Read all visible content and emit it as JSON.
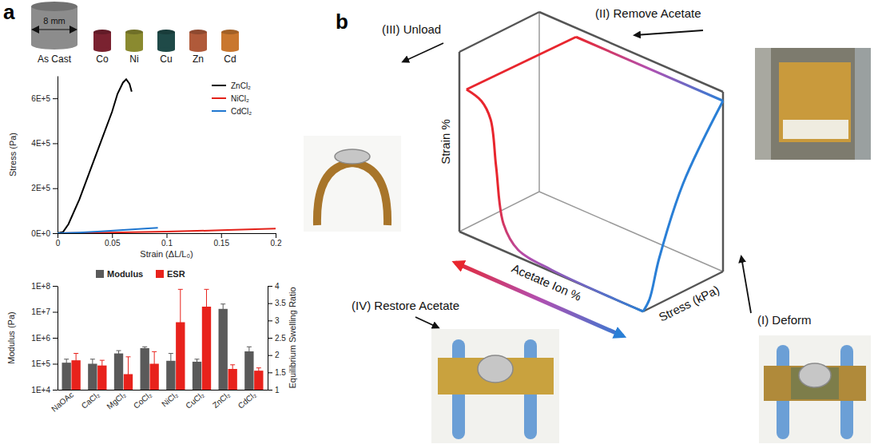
{
  "panel_a": {
    "label": "a",
    "samples": {
      "size_label": "8 mm",
      "names": [
        "As Cast",
        "Co",
        "Ni",
        "Cu",
        "Zn",
        "Cd"
      ],
      "colors": [
        "#8c8c8c",
        "#7a2230",
        "#8a8a30",
        "#1f4a48",
        "#b05a3a",
        "#c9772e"
      ]
    }
  },
  "chart_data": [
    {
      "type": "line",
      "x_label": "Strain (ΔL/L₀)",
      "y_label": "Stress (Pa)",
      "xlim": [
        0,
        0.2
      ],
      "ylim": [
        0,
        700000
      ],
      "xticks": [
        0,
        0.05,
        0.1,
        0.15,
        0.2
      ],
      "yticks": [
        {
          "value": 0,
          "label": "0E+0"
        },
        {
          "value": 200000,
          "label": "2E+5"
        },
        {
          "value": 400000,
          "label": "4E+5"
        },
        {
          "value": 600000,
          "label": "6E+5"
        }
      ],
      "grid": false,
      "legend": "top-right",
      "series": [
        {
          "name": "ZnCl₂",
          "color": "#000000",
          "x": [
            0,
            0.005,
            0.01,
            0.02,
            0.03,
            0.04,
            0.05,
            0.055,
            0.06,
            0.063,
            0.066,
            0.068
          ],
          "values": [
            0,
            5000,
            40000,
            150000,
            280000,
            410000,
            540000,
            620000,
            670000,
            685000,
            665000,
            630000
          ]
        },
        {
          "name": "NiCl₂",
          "color": "#e32119",
          "x": [
            0,
            0.05,
            0.1,
            0.15,
            0.2
          ],
          "values": [
            0,
            3000,
            7000,
            13000,
            20000
          ]
        },
        {
          "name": "CdCl₂",
          "color": "#1f77d0",
          "x": [
            0,
            0.02,
            0.04,
            0.06,
            0.08,
            0.092
          ],
          "values": [
            0,
            3000,
            8000,
            14000,
            20000,
            24000
          ]
        }
      ]
    },
    {
      "type": "bar",
      "categories": [
        "NaOAc",
        "CaCl₂",
        "MgCl₂",
        "CoCl₂",
        "NiCl₂",
        "CuCl₂",
        "ZnCl₂",
        "CdCl₂"
      ],
      "y_label": "Modulus (Pa)",
      "y2_label": "Equilibrium Swelling Ratio",
      "log": "y",
      "ylim": [
        10000,
        100000000
      ],
      "yticks": [
        {
          "value": 10000,
          "label": "1E+4"
        },
        {
          "value": 100000,
          "label": "1E+5"
        },
        {
          "value": 1000000,
          "label": "1E+6"
        },
        {
          "value": 10000000,
          "label": "1E+7"
        },
        {
          "value": 100000000,
          "label": "1E+8"
        }
      ],
      "y2lim": [
        1,
        4
      ],
      "y2ticks": [
        1,
        1.5,
        2,
        2.5,
        3,
        3.5,
        4
      ],
      "grid": false,
      "legend": "top",
      "series": [
        {
          "name": "Modulus",
          "color": "#5a5a5a",
          "values": [
            110000,
            100000,
            250000,
            400000,
            130000,
            120000,
            13000000,
            300000
          ],
          "errors": [
            40000,
            50000,
            70000,
            50000,
            120000,
            30000,
            7000000,
            150000
          ]
        },
        {
          "name": "ESR",
          "color": "#e8221c",
          "axis": "y2",
          "values": [
            1.85,
            1.7,
            1.45,
            1.75,
            2.95,
            3.4,
            1.6,
            1.55
          ],
          "errors": [
            0.2,
            0.15,
            0.5,
            0.35,
            0.95,
            0.5,
            0.12,
            0.08
          ]
        }
      ]
    }
  ],
  "diagram": {
    "label": "b",
    "axes": {
      "strain": "Strain %",
      "stress": "Stress (kPa)",
      "acetate": "Acetate Ion %"
    },
    "steps": [
      "(I) Deform",
      "(II) Remove Acetate",
      "(III) Unload",
      "(IV) Restore Acetate"
    ]
  }
}
